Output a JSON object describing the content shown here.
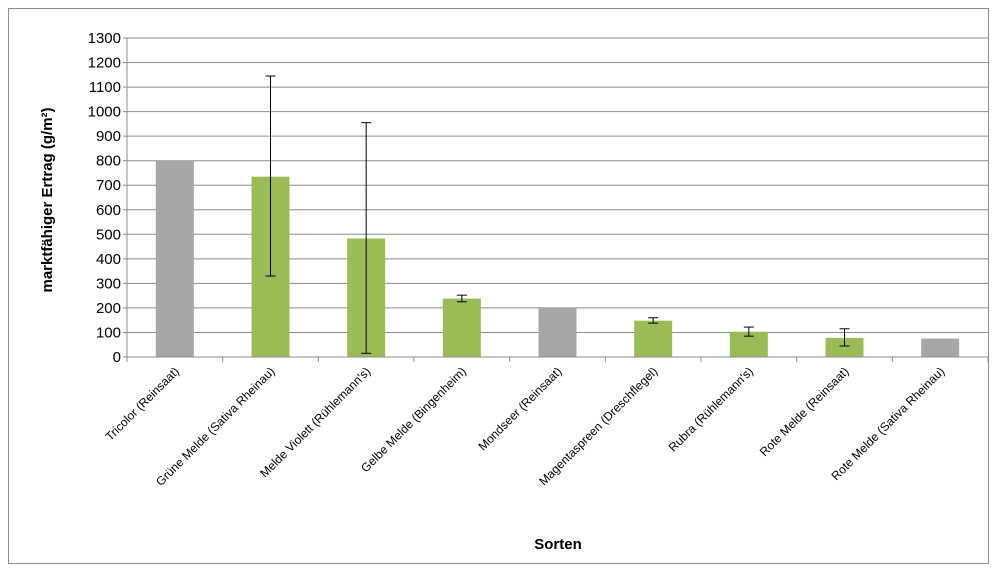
{
  "chart_data": {
    "type": "bar",
    "title": "",
    "xlabel": "Sorten",
    "ylabel": "marktfähiger Ertrag  (g/m²)",
    "ylim": [
      0,
      1300
    ],
    "yticks": [
      0,
      100,
      200,
      300,
      400,
      500,
      600,
      700,
      800,
      900,
      1000,
      1100,
      1200,
      1300
    ],
    "grid": true,
    "legend": "none",
    "categories": [
      "Tricolor (Reinsaat)",
      "Grüne Melde (Sativa Rheinau)",
      "Melde Violett (Rühlemann's)",
      "Gelbe Melde (Bingenheim)",
      "Mondseer (Reinsaat)",
      "Magentaspreen (Dreschflegel)",
      "Rubra (Rühlemann's)",
      "Rote Melde (Reinsaat)",
      "Rote Melde (Sativa Rheinau)"
    ],
    "values": [
      800,
      735,
      483,
      238,
      200,
      148,
      103,
      78,
      75
    ],
    "error_low": [
      null,
      330,
      15,
      225,
      null,
      138,
      85,
      45,
      null
    ],
    "error_high": [
      null,
      1145,
      955,
      252,
      null,
      160,
      122,
      115,
      null
    ],
    "colors": [
      "#a6a6a6",
      "#9bbb59",
      "#9bbb59",
      "#9bbb59",
      "#a6a6a6",
      "#9bbb59",
      "#9bbb59",
      "#9bbb59",
      "#a6a6a6"
    ]
  }
}
